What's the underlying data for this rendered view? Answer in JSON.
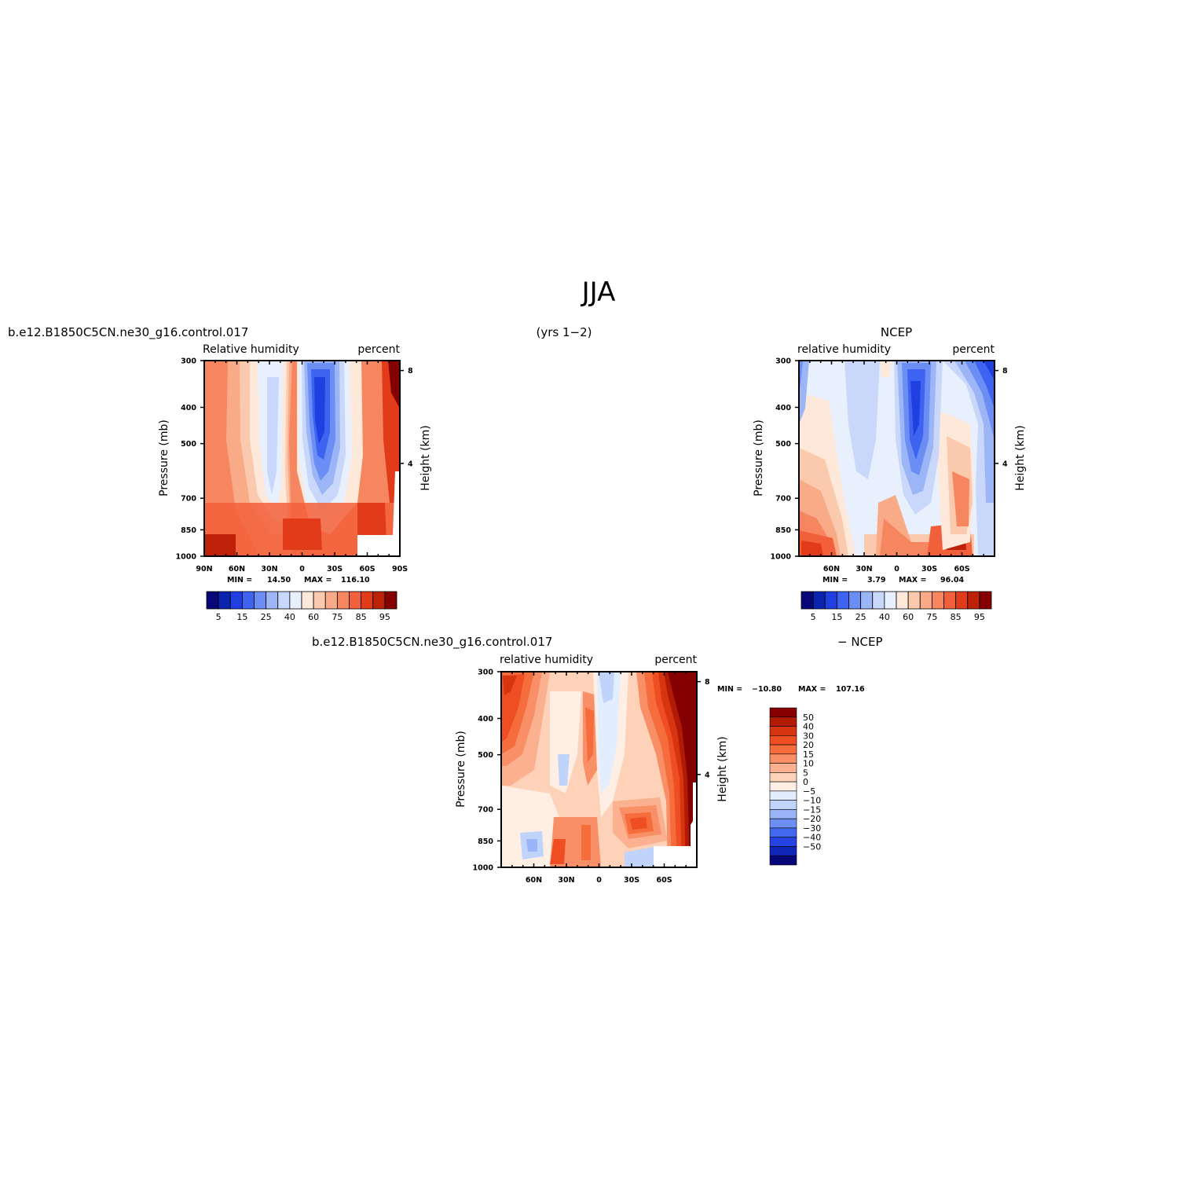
{
  "title": "JJA",
  "case_name": "b.e12.B1850C5CN.ne30_g16.control.017",
  "years": "(yrs 1−2)",
  "chart_data": [
    {
      "type": "heatmap",
      "id": "model",
      "source": "b.e12.B1850C5CN.ne30_g16.control.017",
      "left_label": "Relative humidity",
      "right_label": "percent",
      "ylabel": "Pressure (mb)",
      "ylabel_right": "Height (km)",
      "x_ticks": [
        "90N",
        "60N",
        "30N",
        "0",
        "30S",
        "60S",
        "90S"
      ],
      "y_ticks": [
        "300",
        "400",
        "500",
        "700",
        "850",
        "1000"
      ],
      "height_ticks": [
        "8",
        "4"
      ],
      "ylim": [
        1000,
        300
      ],
      "stats": {
        "min_label": "MIN =",
        "min": "14.50",
        "max_label": "MAX =",
        "max": "116.10"
      },
      "colorbar_labels": [
        "5",
        "15",
        "25",
        "40",
        "60",
        "75",
        "85",
        "95"
      ]
    },
    {
      "type": "heatmap",
      "id": "obs",
      "source": "NCEP",
      "left_label": "relative humidity",
      "right_label": "percent",
      "ylabel": "Pressure (mb)",
      "ylabel_right": "Height (km)",
      "x_ticks": [
        "60N",
        "30N",
        "0",
        "30S",
        "60S"
      ],
      "y_ticks": [
        "300",
        "400",
        "500",
        "700",
        "850",
        "1000"
      ],
      "height_ticks": [
        "8",
        "4"
      ],
      "ylim": [
        1000,
        300
      ],
      "stats": {
        "min_label": "MIN =",
        "min": "3.79",
        "max_label": "MAX =",
        "max": "96.04"
      },
      "colorbar_labels": [
        "5",
        "15",
        "25",
        "40",
        "60",
        "75",
        "85",
        "95"
      ]
    },
    {
      "type": "heatmap",
      "id": "diff",
      "source": "b.e12.B1850C5CN.ne30_g16.control.017",
      "minus": "− NCEP",
      "left_label": "relative humidity",
      "right_label": "percent",
      "ylabel": "Pressure (mb)",
      "ylabel_right": "Height (km)",
      "x_ticks": [
        "60N",
        "30N",
        "0",
        "30S",
        "60S"
      ],
      "y_ticks": [
        "300",
        "400",
        "500",
        "700",
        "850",
        "1000"
      ],
      "height_ticks": [
        "8",
        "4"
      ],
      "ylim": [
        1000,
        300
      ],
      "stats": {
        "min_label": "MIN =",
        "min": "−10.80",
        "max_label": "MAX =",
        "max": "107.16"
      },
      "colorbar_labels": [
        "50",
        "40",
        "30",
        "20",
        "15",
        "10",
        "5",
        "0",
        "−5",
        "−10",
        "−15",
        "−20",
        "−30",
        "−40",
        "−50"
      ]
    }
  ],
  "colors": {
    "abs_scale": [
      "#07077a",
      "#0b24b0",
      "#1f3fe0",
      "#3d63f0",
      "#6a8ef3",
      "#9cb5f6",
      "#c9d8fa",
      "#e8f0fe",
      "#fde8da",
      "#fbc9ad",
      "#f9ab87",
      "#f68660",
      "#f2603b",
      "#e23b1a",
      "#bd2208",
      "#850000"
    ],
    "diff_scale": [
      "#850000",
      "#b11b05",
      "#d63510",
      "#ee4e22",
      "#f56c3d",
      "#f98f66",
      "#fbb08f",
      "#fdd2b8",
      "#feeee3",
      "#e2eefe",
      "#c0d3fb",
      "#9ab4f7",
      "#6e8ff2",
      "#4268ee",
      "#2443e2",
      "#1026b9",
      "#07077a"
    ]
  }
}
